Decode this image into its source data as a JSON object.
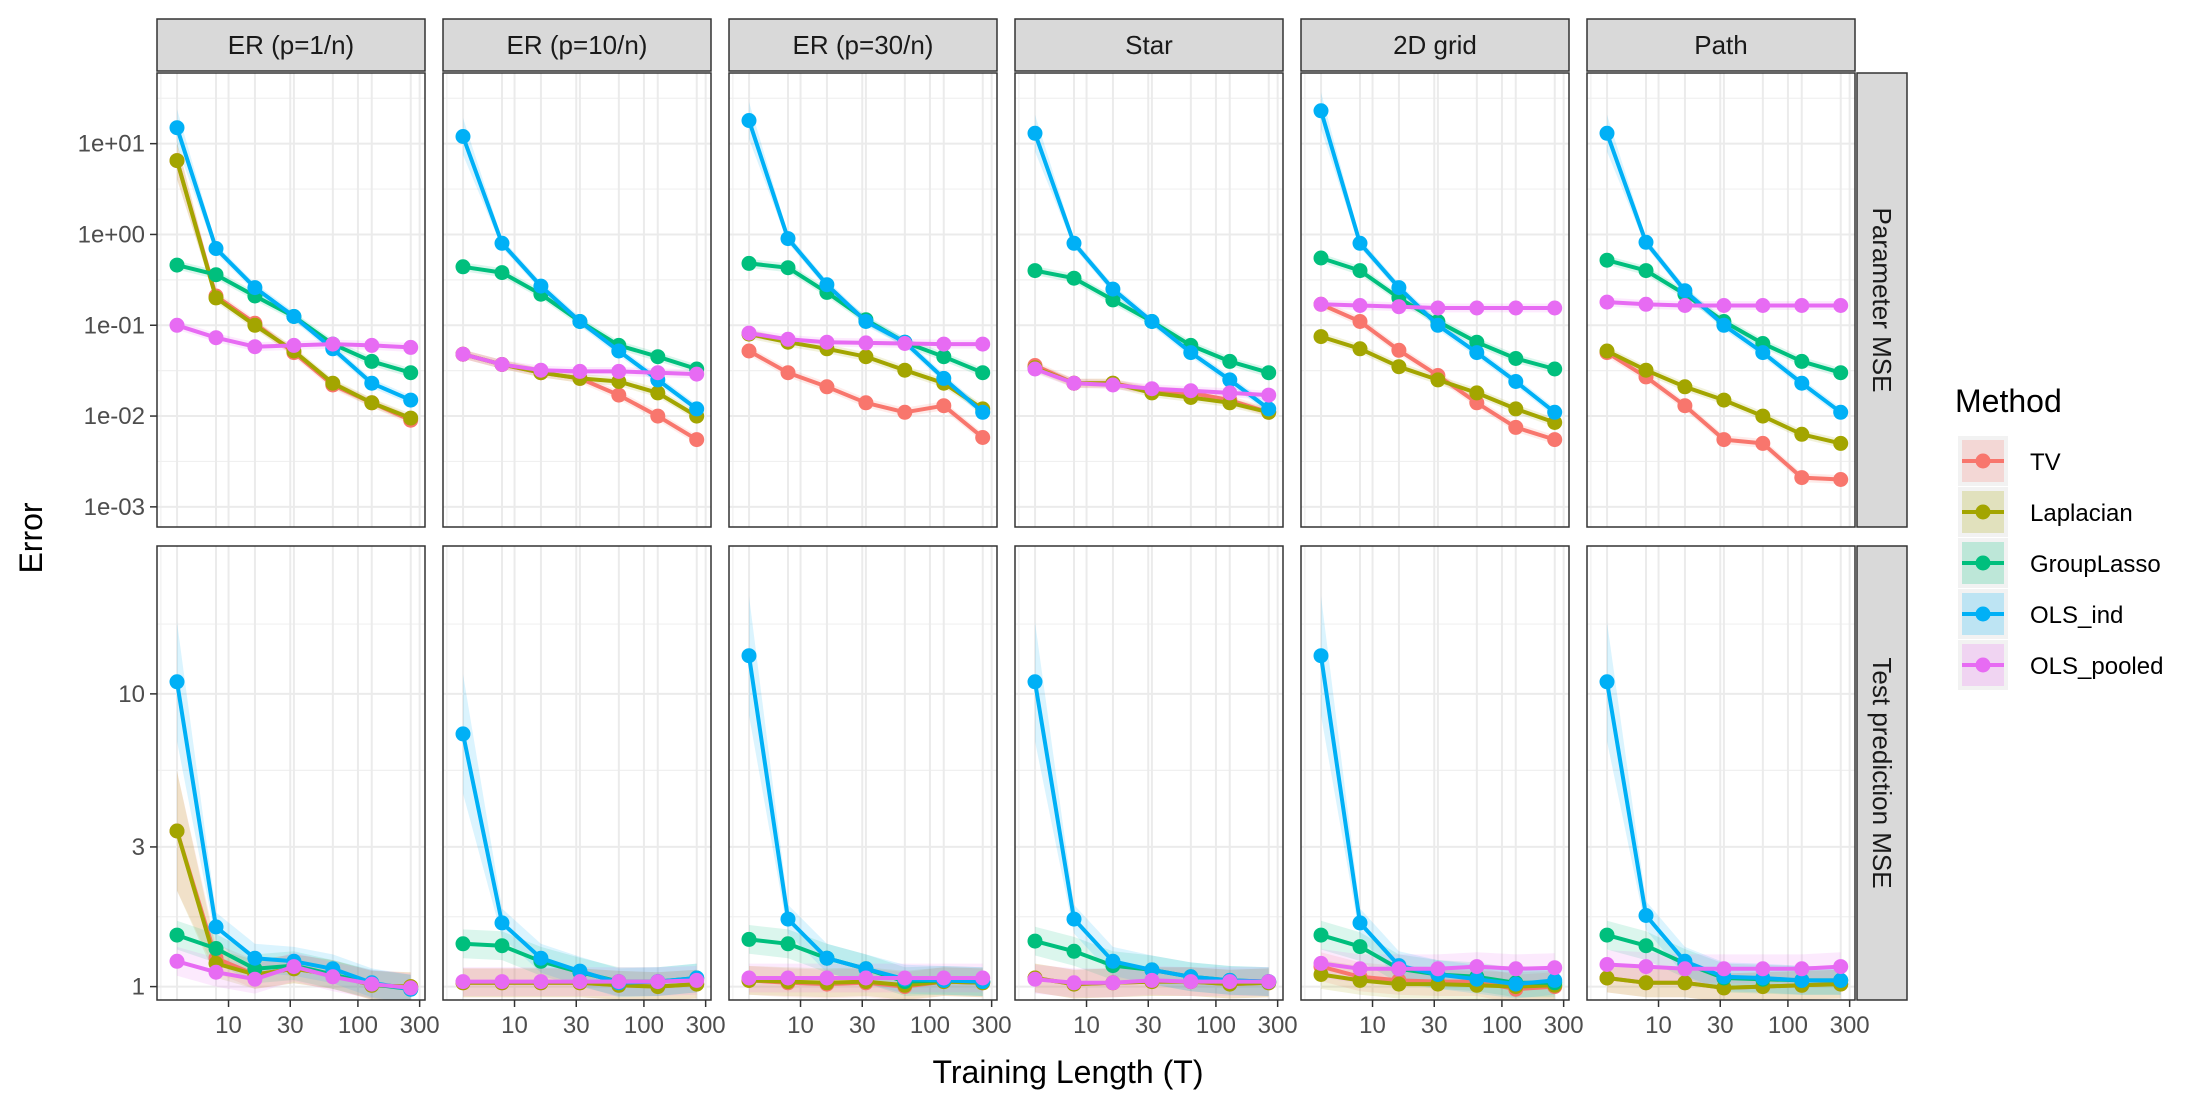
{
  "chart_data": {
    "type": "line",
    "xlabel": "Training Length (T)",
    "ylabel": "Error",
    "x_scale": "log",
    "y_scale": "log",
    "x": [
      4,
      8,
      16,
      32,
      64,
      128,
      256
    ],
    "x_ticks": [
      10,
      30,
      100,
      300
    ],
    "x_tick_labels": [
      "10",
      "30",
      "100",
      "300"
    ],
    "xlim": [
      2.8,
      330
    ],
    "legend": {
      "title": "Method",
      "position": "right",
      "entries": [
        {
          "name": "TV",
          "color": "#F8766D"
        },
        {
          "name": "Laplacian",
          "color": "#A3A500"
        },
        {
          "name": "GroupLasso",
          "color": "#00BF7D"
        },
        {
          "name": "OLS_ind",
          "color": "#00B0F6"
        },
        {
          "name": "OLS_pooled",
          "color": "#E76BF3"
        }
      ]
    },
    "columns": [
      "ER (p=1/n)",
      "ER (p=10/n)",
      "ER (p=30/n)",
      "Star",
      "2D grid",
      "Path"
    ],
    "rows": [
      {
        "label": "Parameter MSE",
        "ylim": [
          0.0006,
          60
        ],
        "y_ticks": [
          0.001,
          0.01,
          0.1,
          1,
          10
        ],
        "y_tick_labels": [
          "1e-03",
          "1e-02",
          "1e-01",
          "1e+00",
          "1e+01"
        ],
        "panels": [
          {
            "series": [
              {
                "name": "TV",
                "values": [
                  6.5,
                  0.21,
                  0.105,
                  0.05,
                  0.022,
                  0.014,
                  0.009
                ]
              },
              {
                "name": "Laplacian",
                "values": [
                  6.5,
                  0.2,
                  0.1,
                  0.052,
                  0.023,
                  0.014,
                  0.0095
                ]
              },
              {
                "name": "GroupLasso",
                "values": [
                  0.46,
                  0.36,
                  0.21,
                  0.125,
                  0.062,
                  0.04,
                  0.03
                ]
              },
              {
                "name": "OLS_ind",
                "values": [
                  15,
                  0.7,
                  0.26,
                  0.125,
                  0.055,
                  0.023,
                  0.015
                ]
              },
              {
                "name": "OLS_pooled",
                "values": [
                  0.1,
                  0.073,
                  0.058,
                  0.06,
                  0.062,
                  0.06,
                  0.057
                ]
              }
            ]
          },
          {
            "series": [
              {
                "name": "TV",
                "values": [
                  0.048,
                  0.037,
                  0.03,
                  0.026,
                  0.017,
                  0.01,
                  0.0055
                ]
              },
              {
                "name": "Laplacian",
                "values": [
                  0.048,
                  0.037,
                  0.03,
                  0.026,
                  0.024,
                  0.018,
                  0.01
                ]
              },
              {
                "name": "GroupLasso",
                "values": [
                  0.44,
                  0.38,
                  0.22,
                  0.11,
                  0.06,
                  0.045,
                  0.033
                ]
              },
              {
                "name": "OLS_ind",
                "values": [
                  12,
                  0.8,
                  0.27,
                  0.11,
                  0.052,
                  0.025,
                  0.012
                ]
              },
              {
                "name": "OLS_pooled",
                "values": [
                  0.048,
                  0.037,
                  0.032,
                  0.031,
                  0.031,
                  0.03,
                  0.029
                ]
              }
            ]
          },
          {
            "series": [
              {
                "name": "TV",
                "values": [
                  0.052,
                  0.03,
                  0.021,
                  0.014,
                  0.011,
                  0.013,
                  0.0058
                ]
              },
              {
                "name": "Laplacian",
                "values": [
                  0.08,
                  0.065,
                  0.055,
                  0.045,
                  0.032,
                  0.023,
                  0.012
                ]
              },
              {
                "name": "GroupLasso",
                "values": [
                  0.48,
                  0.43,
                  0.23,
                  0.115,
                  0.065,
                  0.045,
                  0.03
                ]
              },
              {
                "name": "OLS_ind",
                "values": [
                  18,
                  0.9,
                  0.28,
                  0.11,
                  0.065,
                  0.026,
                  0.011
                ]
              },
              {
                "name": "OLS_pooled",
                "values": [
                  0.082,
                  0.07,
                  0.065,
                  0.064,
                  0.063,
                  0.062,
                  0.062
                ]
              }
            ]
          },
          {
            "series": [
              {
                "name": "TV",
                "values": [
                  0.036,
                  0.023,
                  0.023,
                  0.019,
                  0.018,
                  0.015,
                  0.011
                ]
              },
              {
                "name": "Laplacian",
                "values": [
                  0.034,
                  0.023,
                  0.023,
                  0.018,
                  0.016,
                  0.014,
                  0.011
                ]
              },
              {
                "name": "GroupLasso",
                "values": [
                  0.4,
                  0.33,
                  0.19,
                  0.11,
                  0.06,
                  0.04,
                  0.03
                ]
              },
              {
                "name": "OLS_ind",
                "values": [
                  13,
                  0.8,
                  0.25,
                  0.11,
                  0.05,
                  0.025,
                  0.012
                ]
              },
              {
                "name": "OLS_pooled",
                "values": [
                  0.033,
                  0.023,
                  0.022,
                  0.02,
                  0.019,
                  0.018,
                  0.017
                ]
              }
            ]
          },
          {
            "series": [
              {
                "name": "TV",
                "values": [
                  0.17,
                  0.11,
                  0.053,
                  0.028,
                  0.014,
                  0.0075,
                  0.0055
                ]
              },
              {
                "name": "Laplacian",
                "values": [
                  0.075,
                  0.055,
                  0.035,
                  0.025,
                  0.018,
                  0.012,
                  0.0085
                ]
              },
              {
                "name": "GroupLasso",
                "values": [
                  0.55,
                  0.4,
                  0.2,
                  0.11,
                  0.065,
                  0.043,
                  0.033
                ]
              },
              {
                "name": "OLS_ind",
                "values": [
                  23,
                  0.8,
                  0.26,
                  0.1,
                  0.05,
                  0.024,
                  0.011
                ]
              },
              {
                "name": "OLS_pooled",
                "values": [
                  0.17,
                  0.165,
                  0.16,
                  0.155,
                  0.155,
                  0.155,
                  0.155
                ]
              }
            ]
          },
          {
            "series": [
              {
                "name": "TV",
                "values": [
                  0.05,
                  0.027,
                  0.013,
                  0.0055,
                  0.005,
                  0.0021,
                  0.002
                ]
              },
              {
                "name": "Laplacian",
                "values": [
                  0.052,
                  0.032,
                  0.021,
                  0.015,
                  0.01,
                  0.0063,
                  0.005
                ]
              },
              {
                "name": "GroupLasso",
                "values": [
                  0.52,
                  0.4,
                  0.22,
                  0.11,
                  0.063,
                  0.04,
                  0.03
                ]
              },
              {
                "name": "OLS_ind",
                "values": [
                  13,
                  0.82,
                  0.24,
                  0.1,
                  0.05,
                  0.023,
                  0.011
                ]
              },
              {
                "name": "OLS_pooled",
                "values": [
                  0.18,
                  0.17,
                  0.165,
                  0.165,
                  0.165,
                  0.165,
                  0.165
                ]
              }
            ]
          }
        ]
      },
      {
        "label": "Test prediction MSE",
        "ylim": [
          0.9,
          32
        ],
        "y_ticks": [
          1,
          3,
          10
        ],
        "y_tick_labels": [
          "1",
          "3",
          "10"
        ],
        "panels": [
          {
            "series": [
              {
                "name": "TV",
                "values": [
                  3.4,
                  1.25,
                  1.1,
                  1.15,
                  1.1,
                  1.01,
                  1.0
                ]
              },
              {
                "name": "Laplacian",
                "values": [
                  3.4,
                  1.2,
                  1.1,
                  1.15,
                  1.1,
                  1.01,
                  1.0
                ]
              },
              {
                "name": "GroupLasso",
                "values": [
                  1.5,
                  1.35,
                  1.15,
                  1.18,
                  1.1,
                  1.02,
                  0.98
                ]
              },
              {
                "name": "OLS_ind",
                "values": [
                  11,
                  1.6,
                  1.25,
                  1.22,
                  1.15,
                  1.03,
                  0.98
                ]
              },
              {
                "name": "OLS_pooled",
                "values": [
                  1.22,
                  1.12,
                  1.06,
                  1.17,
                  1.08,
                  1.02,
                  0.99
                ]
              }
            ]
          },
          {
            "series": [
              {
                "name": "TV",
                "values": [
                  1.03,
                  1.03,
                  1.03,
                  1.03,
                  1.01,
                  1.0,
                  1.02
                ]
              },
              {
                "name": "Laplacian",
                "values": [
                  1.03,
                  1.03,
                  1.03,
                  1.03,
                  1.01,
                  1.0,
                  1.02
                ]
              },
              {
                "name": "GroupLasso",
                "values": [
                  1.4,
                  1.38,
                  1.22,
                  1.12,
                  1.04,
                  1.04,
                  1.07
                ]
              },
              {
                "name": "OLS_ind",
                "values": [
                  7.3,
                  1.65,
                  1.25,
                  1.13,
                  1.03,
                  1.04,
                  1.07
                ]
              },
              {
                "name": "OLS_pooled",
                "values": [
                  1.04,
                  1.04,
                  1.04,
                  1.04,
                  1.04,
                  1.04,
                  1.05
                ]
              }
            ]
          },
          {
            "series": [
              {
                "name": "TV",
                "values": [
                  1.05,
                  1.03,
                  1.02,
                  1.03,
                  1.0,
                  1.04,
                  1.03
                ]
              },
              {
                "name": "Laplacian",
                "values": [
                  1.05,
                  1.04,
                  1.03,
                  1.04,
                  1.01,
                  1.04,
                  1.03
                ]
              },
              {
                "name": "GroupLasso",
                "values": [
                  1.45,
                  1.4,
                  1.25,
                  1.15,
                  1.04,
                  1.05,
                  1.04
                ]
              },
              {
                "name": "OLS_ind",
                "values": [
                  13.5,
                  1.7,
                  1.25,
                  1.15,
                  1.06,
                  1.05,
                  1.04
                ]
              },
              {
                "name": "OLS_pooled",
                "values": [
                  1.07,
                  1.07,
                  1.07,
                  1.07,
                  1.07,
                  1.07,
                  1.07
                ]
              }
            ]
          },
          {
            "series": [
              {
                "name": "TV",
                "values": [
                  1.07,
                  1.02,
                  1.03,
                  1.04,
                  1.04,
                  1.02,
                  1.03
                ]
              },
              {
                "name": "Laplacian",
                "values": [
                  1.07,
                  1.02,
                  1.03,
                  1.04,
                  1.04,
                  1.02,
                  1.03
                ]
              },
              {
                "name": "GroupLasso",
                "values": [
                  1.43,
                  1.32,
                  1.18,
                  1.14,
                  1.08,
                  1.05,
                  1.04
                ]
              },
              {
                "name": "OLS_ind",
                "values": [
                  11,
                  1.7,
                  1.22,
                  1.14,
                  1.08,
                  1.05,
                  1.04
                ]
              },
              {
                "name": "OLS_pooled",
                "values": [
                  1.06,
                  1.03,
                  1.03,
                  1.05,
                  1.04,
                  1.04,
                  1.04
                ]
              }
            ]
          },
          {
            "series": [
              {
                "name": "TV",
                "values": [
                  1.17,
                  1.08,
                  1.05,
                  1.04,
                  1.04,
                  0.98,
                  1.0
                ]
              },
              {
                "name": "Laplacian",
                "values": [
                  1.1,
                  1.05,
                  1.02,
                  1.02,
                  1.01,
                  1.0,
                  1.01
                ]
              },
              {
                "name": "GroupLasso",
                "values": [
                  1.5,
                  1.37,
                  1.15,
                  1.1,
                  1.08,
                  1.03,
                  1.03
                ]
              },
              {
                "name": "OLS_ind",
                "values": [
                  13.5,
                  1.65,
                  1.18,
                  1.1,
                  1.06,
                  1.02,
                  1.05
                ]
              },
              {
                "name": "OLS_pooled",
                "values": [
                  1.2,
                  1.15,
                  1.15,
                  1.15,
                  1.17,
                  1.15,
                  1.16
                ]
              }
            ]
          },
          {
            "series": [
              {
                "name": "TV",
                "values": [
                  1.07,
                  1.03,
                  1.03,
                  0.99,
                  1.0,
                  1.01,
                  1.02
                ]
              },
              {
                "name": "Laplacian",
                "values": [
                  1.07,
                  1.03,
                  1.03,
                  0.99,
                  1.0,
                  1.01,
                  1.02
                ]
              },
              {
                "name": "GroupLasso",
                "values": [
                  1.5,
                  1.38,
                  1.2,
                  1.07,
                  1.06,
                  1.05,
                  1.05
                ]
              },
              {
                "name": "OLS_ind",
                "values": [
                  11,
                  1.75,
                  1.22,
                  1.08,
                  1.07,
                  1.05,
                  1.05
                ]
              },
              {
                "name": "OLS_pooled",
                "values": [
                  1.19,
                  1.17,
                  1.15,
                  1.15,
                  1.15,
                  1.15,
                  1.17
                ]
              }
            ]
          }
        ]
      }
    ]
  }
}
